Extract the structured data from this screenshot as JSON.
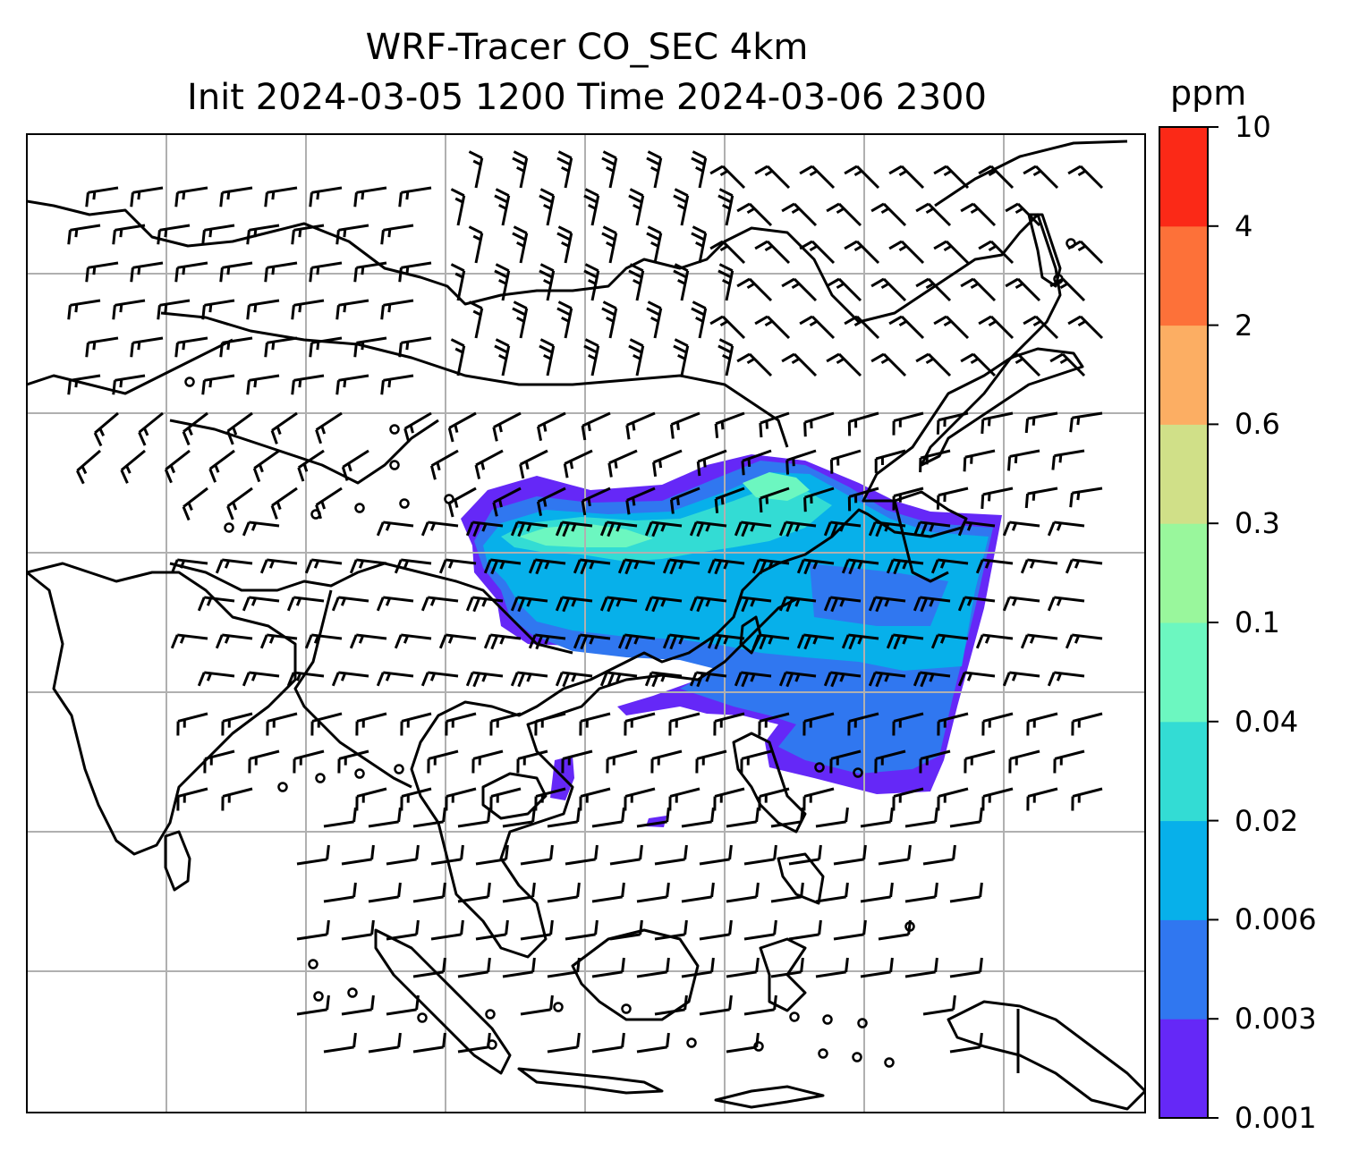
{
  "title": {
    "line1": "WRF-Tracer CO_SEC 4km",
    "line2": "Init 2024-03-05 1200 Time 2024-03-06 2300"
  },
  "colorbar": {
    "unit": "ppm",
    "levels": [
      "0.001",
      "0.003",
      "0.006",
      "0.02",
      "0.04",
      "0.1",
      "0.3",
      "0.6",
      "2",
      "4",
      "10"
    ],
    "colors": [
      "#6528f7",
      "#3077f0",
      "#07b0ea",
      "#33dcd4",
      "#6cf7c0",
      "#99f79c",
      "#d0e088",
      "#fcae63",
      "#fd7139",
      "#fb2917"
    ]
  },
  "map": {
    "gridlines": true,
    "land_outline_color": "#000000",
    "grid_color": "#b0b0b0"
  },
  "chart_data": {
    "type": "heatmap",
    "variable": "CO_SEC tracer concentration",
    "unit": "ppm",
    "levels": [
      0.001,
      0.003,
      0.006,
      0.02,
      0.04,
      0.1,
      0.3,
      0.6,
      2,
      4,
      10
    ],
    "overlay": "wind barbs"
  }
}
